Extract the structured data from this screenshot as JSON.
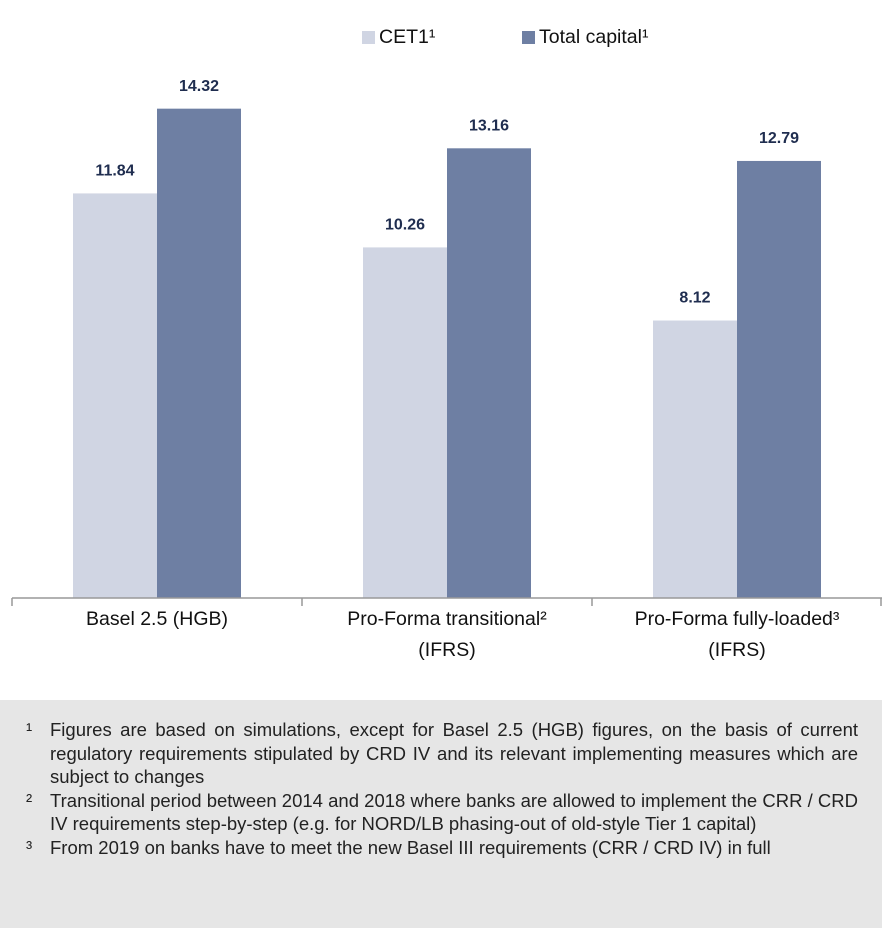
{
  "chart_data": {
    "type": "bar",
    "categories": [
      "Basel 2.5 (HGB)",
      "Pro-Forma transitional²\n(IFRS)",
      "Pro-Forma fully-loaded³\n(IFRS)"
    ],
    "series": [
      {
        "name": "CET1¹",
        "color": "#d0d5e3",
        "values": [
          11.84,
          10.26,
          8.12
        ]
      },
      {
        "name": "Total capital¹",
        "color": "#6e7fa3",
        "values": [
          14.32,
          13.16,
          12.79
        ]
      }
    ],
    "ylim": [
      0,
      17.5
    ],
    "footnotes": [
      {
        "marker": "¹",
        "text": "Figures are based on simulations, except for Basel 2.5 (HGB) figures, on the basis of current regulatory requirements stipulated by CRD IV and its relevant implementing measures which are subject to changes"
      },
      {
        "marker": "²",
        "text": "Transitional period between 2014 and 2018 where banks are allowed to implement the CRR / CRD IV requirements step-by-step (e.g. for NORD/LB phasing-out of old-style Tier 1 capital)"
      },
      {
        "marker": "³",
        "text": "From 2019 on banks have to meet the new Basel III requirements (CRR / CRD IV) in full"
      }
    ]
  }
}
